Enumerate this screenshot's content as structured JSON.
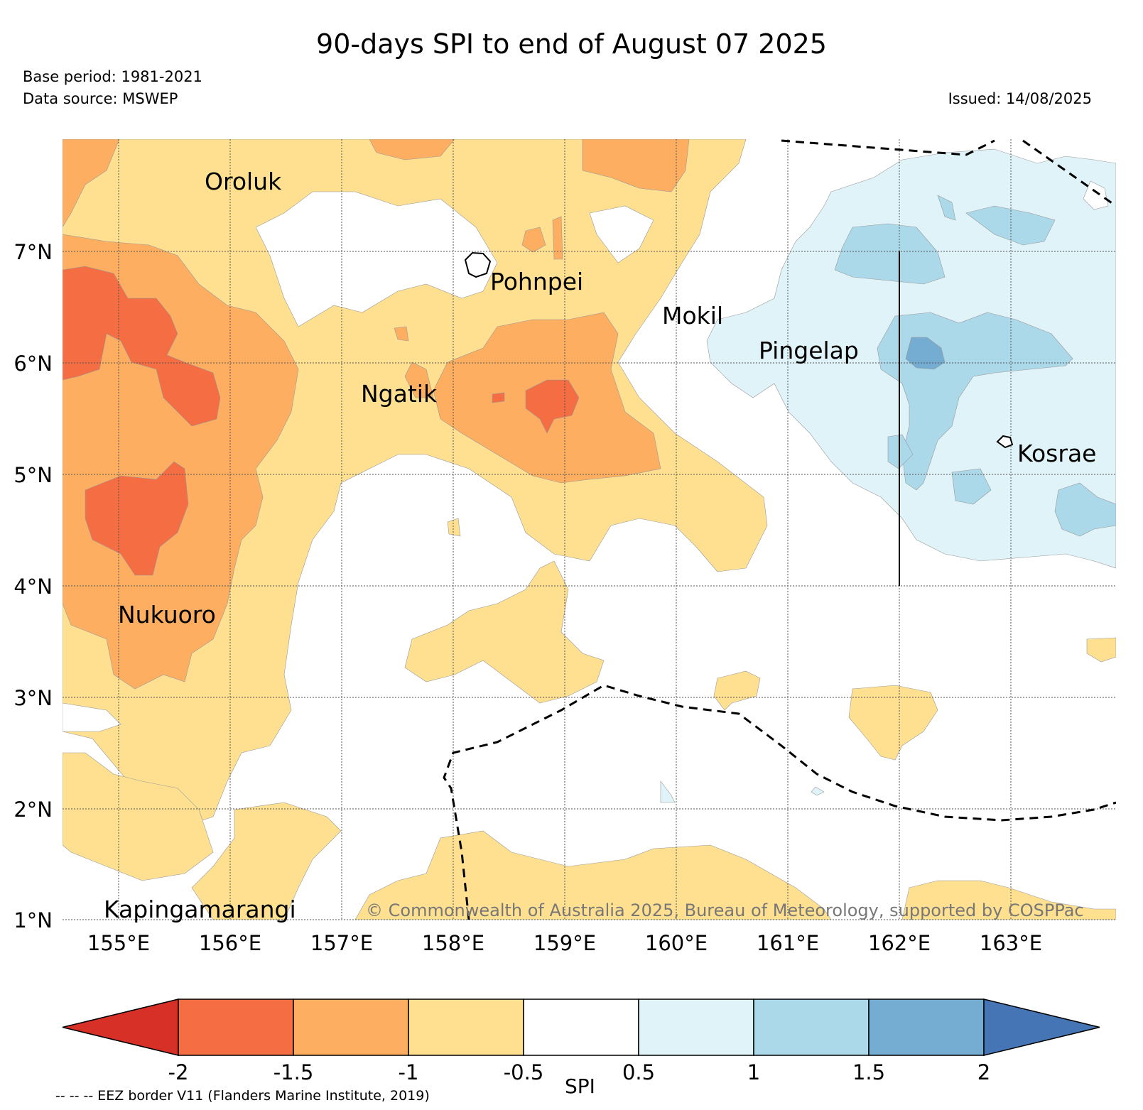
{
  "title": "90-days SPI to end of August 07 2025",
  "meta": {
    "base_period": "Base period: 1981-2021",
    "data_source": "Data source: MSWEP",
    "issued": "Issued: 14/08/2025"
  },
  "axes": {
    "lat_labels": [
      "7°N",
      "6°N",
      "5°N",
      "4°N",
      "3°N",
      "2°N",
      "1°N"
    ],
    "lon_labels": [
      "155°E",
      "156°E",
      "157°E",
      "158°E",
      "159°E",
      "160°E",
      "161°E",
      "162°E",
      "163°E"
    ]
  },
  "places": [
    {
      "name": "Oroluk"
    },
    {
      "name": "Pohnpei"
    },
    {
      "name": "Mokil"
    },
    {
      "name": "Pingelap"
    },
    {
      "name": "Ngatik"
    },
    {
      "name": "Kosrae"
    },
    {
      "name": "Nukuoro"
    },
    {
      "name": "Kapingamarangi"
    }
  ],
  "copyright": "© Commonwealth of Australia 2025, Bureau of Meteorology, supported by COSPPac",
  "colorbar": {
    "label": "SPI",
    "ticks": [
      "-2",
      "-1.5",
      "-1",
      "-0.5",
      "0.5",
      "1",
      "1.5",
      "2"
    ],
    "colors": [
      "#d73027",
      "#f46d43",
      "#fdae61",
      "#fee090",
      "#ffffff",
      "#e0f3f8",
      "#abd9e9",
      "#74add1",
      "#4575b4"
    ]
  },
  "eez_note": "-- -- -- EEZ border V11 (Flanders Marine Institute, 2019)"
}
